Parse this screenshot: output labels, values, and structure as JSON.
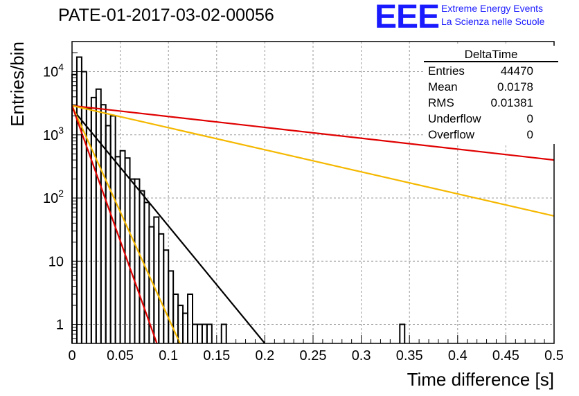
{
  "header": {
    "title": "PATE-01-2017-03-02-00056",
    "logo": "EEE",
    "logo_line1": "Extreme Energy Events",
    "logo_line2": "La Scienza nelle Scuole"
  },
  "stats_box": {
    "title": "DeltaTime",
    "rows": [
      {
        "label": "Entries",
        "value": "44470"
      },
      {
        "label": "Mean",
        "value": "0.0178"
      },
      {
        "label": "RMS",
        "value": "0.01381"
      },
      {
        "label": "Underflow",
        "value": "0"
      },
      {
        "label": "Overflow",
        "value": "0"
      }
    ]
  },
  "colors": {
    "histogram": "#000000",
    "fit_black": "#000000",
    "red": "#e00000",
    "yellow": "#f5b800",
    "logo": "#1a1aff",
    "grid": "#999999"
  },
  "chart_data": {
    "type": "histogram",
    "xlabel": "Time difference [s]",
    "ylabel": "Entries/bin",
    "xlim": [
      0,
      0.5
    ],
    "ylim": [
      0.5,
      30000
    ],
    "yscale": "log",
    "grid": true,
    "x_ticks": [
      "0",
      "0.05",
      "0.1",
      "0.15",
      "0.2",
      "0.25",
      "0.3",
      "0.35",
      "0.4",
      "0.45",
      "0.5"
    ],
    "y_ticks": [
      {
        "value": 1,
        "label": "1"
      },
      {
        "value": 10,
        "label": "10"
      },
      {
        "value": 100,
        "label": "10",
        "exp": "2"
      },
      {
        "value": 1000,
        "label": "10",
        "exp": "3"
      },
      {
        "value": 10000,
        "label": "10",
        "exp": "4"
      }
    ],
    "bin_width": 0.005,
    "bins": [
      {
        "x": 0.0,
        "y": 9000
      },
      {
        "x": 0.005,
        "y": 17000
      },
      {
        "x": 0.01,
        "y": 10000
      },
      {
        "x": 0.015,
        "y": 2600
      },
      {
        "x": 0.02,
        "y": 3900
      },
      {
        "x": 0.025,
        "y": 5300
      },
      {
        "x": 0.03,
        "y": 3000
      },
      {
        "x": 0.035,
        "y": 1400
      },
      {
        "x": 0.04,
        "y": 2000
      },
      {
        "x": 0.045,
        "y": 450
      },
      {
        "x": 0.05,
        "y": 560
      },
      {
        "x": 0.055,
        "y": 430
      },
      {
        "x": 0.06,
        "y": 200
      },
      {
        "x": 0.065,
        "y": 200
      },
      {
        "x": 0.07,
        "y": 130
      },
      {
        "x": 0.075,
        "y": 85
      },
      {
        "x": 0.08,
        "y": 35
      },
      {
        "x": 0.085,
        "y": 50
      },
      {
        "x": 0.09,
        "y": 27
      },
      {
        "x": 0.095,
        "y": 15
      },
      {
        "x": 0.1,
        "y": 7
      },
      {
        "x": 0.105,
        "y": 3
      },
      {
        "x": 0.11,
        "y": 2
      },
      {
        "x": 0.115,
        "y": 1.5
      },
      {
        "x": 0.12,
        "y": 3
      },
      {
        "x": 0.125,
        "y": 1
      },
      {
        "x": 0.13,
        "y": 1
      },
      {
        "x": 0.135,
        "y": 1
      },
      {
        "x": 0.14,
        "y": 1
      },
      {
        "x": 0.145,
        "y": 0
      },
      {
        "x": 0.15,
        "y": 0
      },
      {
        "x": 0.155,
        "y": 1
      },
      {
        "x": 0.34,
        "y": 1
      }
    ],
    "curves": [
      {
        "color": "#e00000",
        "points": [
          [
            0,
            2900
          ],
          [
            0.5,
            400
          ]
        ]
      },
      {
        "color": "#f5b800",
        "points": [
          [
            0,
            2900
          ],
          [
            0.5,
            52
          ]
        ]
      },
      {
        "color": "#000000",
        "points": [
          [
            0,
            2600
          ],
          [
            0.2,
            0.5
          ]
        ]
      },
      {
        "color": "#f5b800",
        "points": [
          [
            0,
            2900
          ],
          [
            0.112,
            0.5
          ]
        ]
      },
      {
        "color": "#e00000",
        "points": [
          [
            0,
            2900
          ],
          [
            0.088,
            0.5
          ]
        ]
      }
    ]
  }
}
